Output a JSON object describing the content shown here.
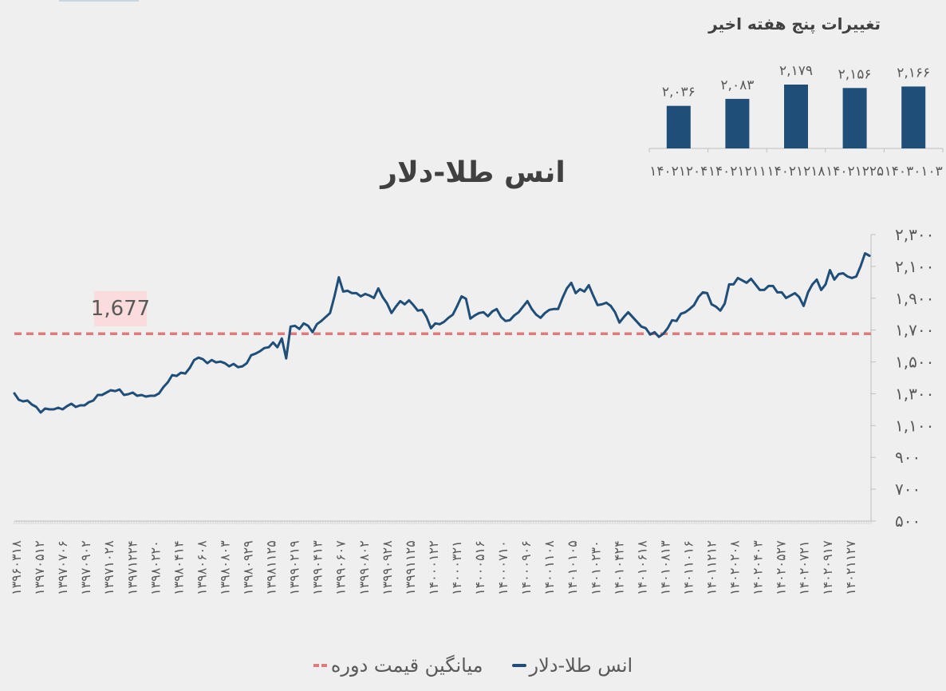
{
  "mini_chart": {
    "title": "تغییرات پنج هفته اخیر"
  },
  "main_chart": {
    "title": "انس طلا-دلار",
    "average_label": "1,677"
  },
  "legend": {
    "series_label": "انس طلا-دلار",
    "average_label": "میانگین قیمت دوره"
  },
  "colors": {
    "series": "#1f4e79",
    "average": "#e07b7b",
    "average_label_bg": "#fadcdc",
    "background": "#efefef",
    "text": "#595959"
  },
  "chart_data": [
    {
      "type": "bar",
      "title": "تغییرات پنج هفته اخیر",
      "categories": [
        "14021204",
        "14021211",
        "14021218",
        "14021225",
        "14030103"
      ],
      "values": [
        2036,
        2083,
        2179,
        2156,
        2166
      ],
      "value_labels": [
        "2,036",
        "2,083",
        "2,179",
        "2,156",
        "2,166"
      ],
      "xlabel": "",
      "ylabel": "",
      "grid": false,
      "legend": null
    },
    {
      "type": "line",
      "title": "انس طلا-دلار",
      "xlabel": "",
      "ylabel": "",
      "ylim": [
        500,
        2300
      ],
      "yticks": [
        500,
        700,
        900,
        1100,
        1300,
        1500,
        1700,
        1900,
        2100,
        2300
      ],
      "ytick_labels": [
        "500",
        "700",
        "900",
        "1,100",
        "1,300",
        "1,500",
        "1,700",
        "1,900",
        "2,100",
        "2,300"
      ],
      "y_axis_position": "right",
      "grid": false,
      "legend_position": "bottom",
      "x_tick_labels": [
        "13960318",
        "13970512",
        "13970706",
        "13970902",
        "13971028",
        "13971224",
        "13980220",
        "13980414",
        "13980608",
        "13980803",
        "13980929",
        "13981125",
        "13990219",
        "13990413",
        "13990607",
        "13990802",
        "13990928",
        "13991125",
        "14000122",
        "14000321",
        "14000516",
        "14000710",
        "14000906",
        "14001108",
        "14010105",
        "14010230",
        "14010424",
        "14010618",
        "14010813",
        "14011016",
        "14011212",
        "14020208",
        "14020403",
        "14020527",
        "14020721",
        "14020917",
        "14021127"
      ],
      "series": [
        {
          "name": "انس طلا-دلار",
          "style": "solid",
          "values": [
            1302,
            1262,
            1252,
            1257,
            1232,
            1217,
            1182,
            1207,
            1202,
            1202,
            1212,
            1202,
            1222,
            1237,
            1217,
            1227,
            1227,
            1247,
            1257,
            1292,
            1292,
            1307,
            1322,
            1317,
            1327,
            1292,
            1297,
            1307,
            1287,
            1292,
            1282,
            1287,
            1287,
            1302,
            1342,
            1372,
            1417,
            1412,
            1432,
            1427,
            1462,
            1512,
            1527,
            1517,
            1492,
            1512,
            1497,
            1502,
            1492,
            1472,
            1487,
            1467,
            1472,
            1492,
            1542,
            1552,
            1567,
            1587,
            1592,
            1622,
            1592,
            1647,
            1522,
            1722,
            1727,
            1707,
            1742,
            1727,
            1687,
            1737,
            1757,
            1782,
            1807,
            1912,
            2032,
            1942,
            1947,
            1932,
            1932,
            1912,
            1927,
            1917,
            1902,
            1962,
            1907,
            1867,
            1807,
            1847,
            1882,
            1862,
            1887,
            1857,
            1822,
            1827,
            1782,
            1712,
            1742,
            1737,
            1752,
            1777,
            1797,
            1852,
            1912,
            1897,
            1772,
            1792,
            1807,
            1812,
            1787,
            1817,
            1832,
            1782,
            1757,
            1762,
            1792,
            1812,
            1847,
            1882,
            1832,
            1797,
            1777,
            1807,
            1827,
            1832,
            1832,
            1902,
            1962,
            1997,
            1932,
            1957,
            1942,
            1982,
            1917,
            1857,
            1862,
            1872,
            1852,
            1812,
            1747,
            1782,
            1812,
            1782,
            1752,
            1722,
            1712,
            1672,
            1687,
            1657,
            1677,
            1712,
            1762,
            1757,
            1802,
            1812,
            1832,
            1857,
            1907,
            1937,
            1932,
            1862,
            1847,
            1822,
            1867,
            1987,
            1987,
            2027,
            2012,
            1997,
            2022,
            1987,
            1952,
            1952,
            1977,
            1977,
            1937,
            1937,
            1902,
            1917,
            1932,
            1907,
            1852,
            1937,
            1987,
            2017,
            1952,
            1987,
            2077,
            2017,
            2052,
            2057,
            2037,
            2027,
            2037,
            2102,
            2182,
            2167
          ]
        },
        {
          "name": "میانگین قیمت دوره",
          "style": "dashed",
          "values_constant": 1677
        }
      ],
      "annotations": [
        {
          "text": "1,677",
          "target": "average line"
        }
      ]
    }
  ]
}
